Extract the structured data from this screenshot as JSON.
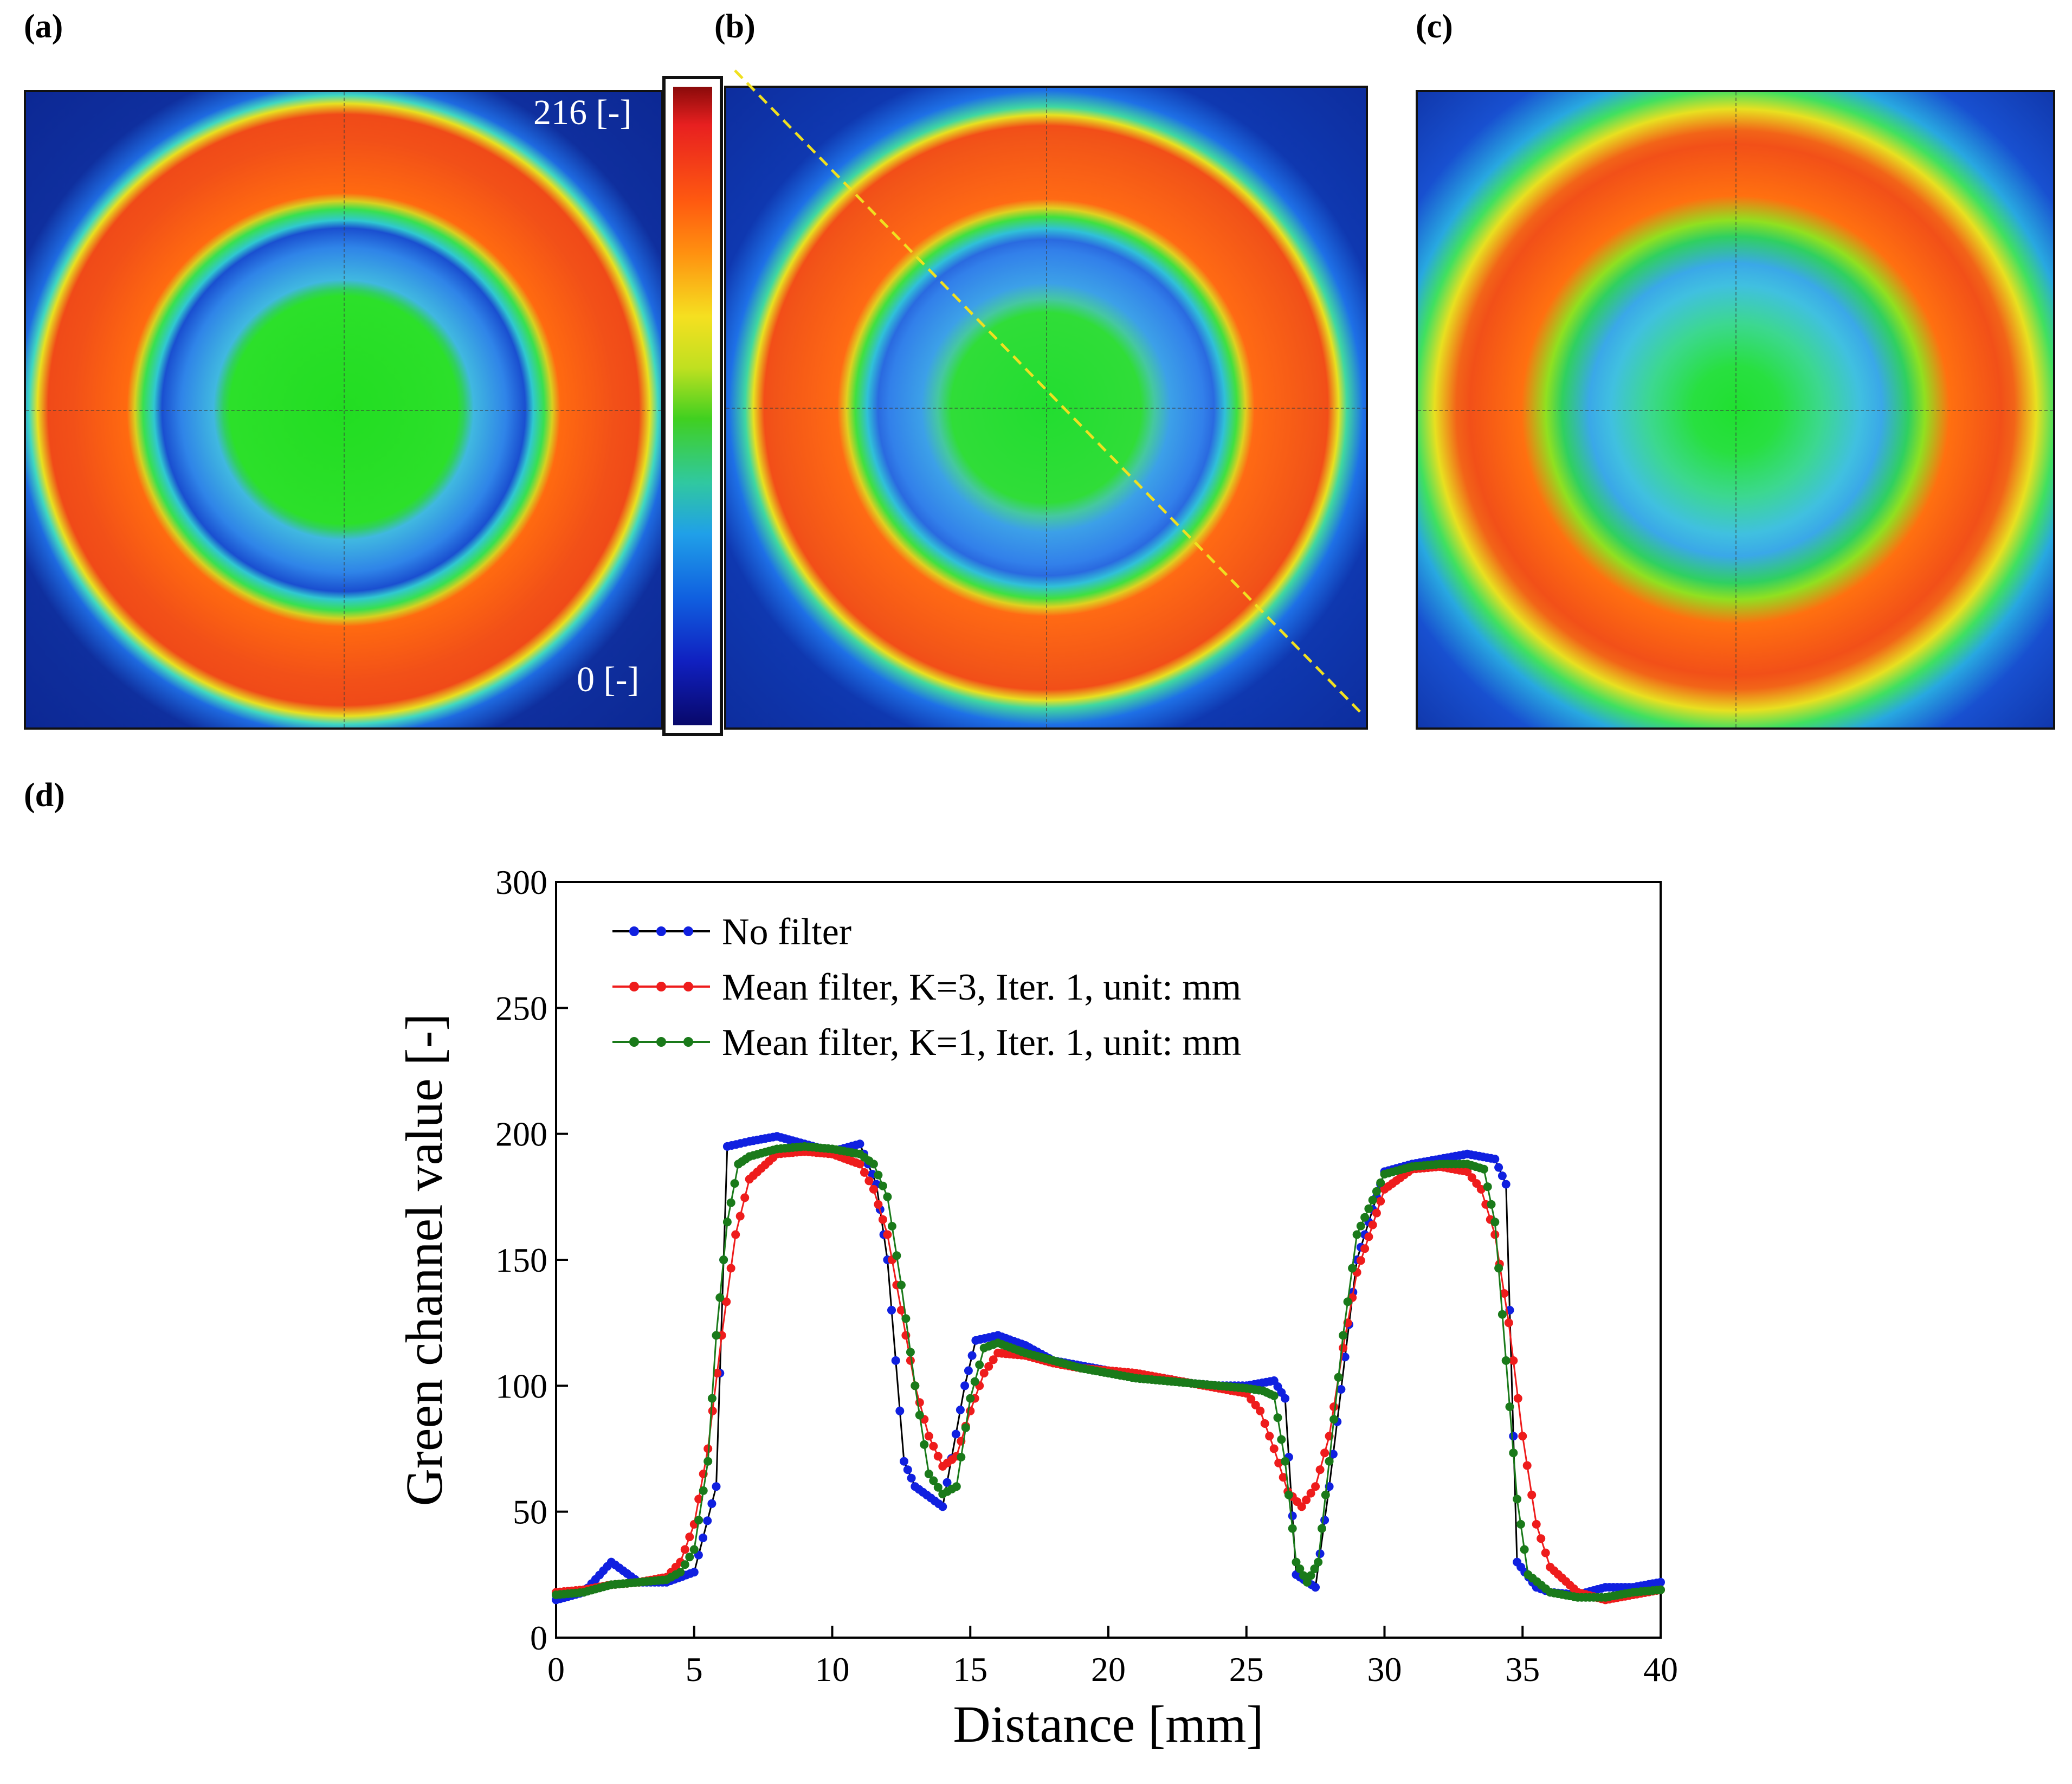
{
  "panels": {
    "a": {
      "label": "(a)"
    },
    "b": {
      "label": "(b)"
    },
    "c": {
      "label": "(c)"
    },
    "d": {
      "label": "(d)"
    }
  },
  "colorbar": {
    "max_label": "216 [-]",
    "min_label": "0 [-]",
    "max_value": 216,
    "min_value": 0
  },
  "colors": {
    "no_filter": "#1020e0",
    "mean_k3": "#ee1c1c",
    "mean_k1": "#1a7a1a",
    "line_black": "#000000",
    "profile_line": "#f0e020"
  },
  "chart_data": {
    "type": "line",
    "title": "",
    "xlabel": "Distance [mm]",
    "ylabel": "Green channel value [-]",
    "xlim": [
      0,
      40
    ],
    "ylim": [
      0,
      300
    ],
    "xticks": [
      0,
      5,
      10,
      15,
      20,
      25,
      30,
      35,
      40
    ],
    "yticks": [
      0,
      50,
      100,
      150,
      200,
      250,
      300
    ],
    "legend_position": "top-left",
    "series": [
      {
        "name": "No filter",
        "legend": "No filter",
        "x": [
          0,
          1,
          2,
          3,
          4,
          5,
          5.8,
          6.2,
          7,
          8,
          9,
          10,
          11,
          11.6,
          12,
          12.6,
          13,
          14,
          14.8,
          15.2,
          16,
          17,
          18,
          19,
          20,
          21,
          22,
          23,
          24,
          25,
          26,
          26.4,
          26.8,
          27.5,
          28,
          29,
          30,
          31,
          32,
          33,
          34,
          34.4,
          34.8,
          35.5,
          36,
          37,
          38,
          39,
          40
        ],
        "y": [
          15,
          18,
          30,
          22,
          22,
          26,
          60,
          195,
          197,
          199,
          196,
          193,
          196,
          180,
          150,
          70,
          60,
          52,
          100,
          118,
          120,
          116,
          110,
          108,
          106,
          104,
          103,
          101,
          100,
          100,
          102,
          95,
          25,
          20,
          60,
          150,
          185,
          188,
          190,
          192,
          190,
          180,
          30,
          20,
          18,
          17,
          20,
          20,
          22
        ]
      },
      {
        "name": "Mean filter, K=3, Iter. 1, unit: mm",
        "legend": "Mean filter, K=3, Iter. 1, unit: mm",
        "x": [
          0,
          1,
          2,
          3,
          4,
          4.5,
          5,
          5.5,
          6,
          6.5,
          7,
          8,
          9,
          10,
          11,
          11.5,
          12,
          12.5,
          13,
          13.5,
          14,
          14.5,
          15,
          15.5,
          16,
          17,
          18,
          19,
          20,
          21,
          22,
          23,
          24,
          25,
          25.5,
          26,
          26.5,
          27,
          27.5,
          28,
          28.5,
          29,
          30,
          31,
          32,
          33,
          33.5,
          34,
          34.5,
          35,
          35.5,
          36,
          37,
          38,
          39,
          40
        ],
        "y": [
          18,
          19,
          21,
          22,
          24,
          30,
          45,
          75,
          120,
          160,
          182,
          192,
          193,
          192,
          188,
          178,
          160,
          130,
          100,
          80,
          68,
          72,
          90,
          105,
          113,
          112,
          109,
          107,
          106,
          105,
          103,
          101,
          99,
          97,
          90,
          75,
          58,
          52,
          60,
          80,
          115,
          145,
          178,
          186,
          187,
          185,
          178,
          160,
          125,
          80,
          45,
          28,
          18,
          15,
          17,
          19
        ]
      },
      {
        "name": "Mean filter, K=1, Iter. 1, unit: mm",
        "legend": "Mean filter, K=1, Iter. 1, unit: mm",
        "x": [
          0,
          1,
          2,
          3,
          4,
          4.5,
          5,
          5.5,
          5.8,
          6.2,
          6.6,
          7,
          8,
          9,
          10,
          11,
          11.5,
          12,
          12.5,
          13,
          13.5,
          14,
          14.5,
          15,
          15.5,
          16,
          17,
          18,
          19,
          20,
          21,
          22,
          23,
          24,
          25,
          25.6,
          26,
          26.4,
          26.8,
          27.2,
          27.6,
          28,
          28.5,
          29,
          30,
          31,
          32,
          33,
          33.6,
          34,
          34.4,
          34.8,
          35.2,
          36,
          37,
          38,
          39,
          40
        ],
        "y": [
          17,
          18,
          21,
          22,
          23,
          26,
          35,
          70,
          120,
          165,
          188,
          191,
          194,
          195,
          194,
          192,
          188,
          175,
          140,
          100,
          65,
          57,
          60,
          95,
          115,
          117,
          113,
          110,
          107,
          105,
          103,
          102,
          101,
          100,
          99,
          98,
          96,
          70,
          30,
          22,
          30,
          70,
          120,
          160,
          184,
          187,
          188,
          188,
          186,
          165,
          110,
          55,
          25,
          18,
          16,
          16,
          18,
          19
        ]
      }
    ]
  }
}
